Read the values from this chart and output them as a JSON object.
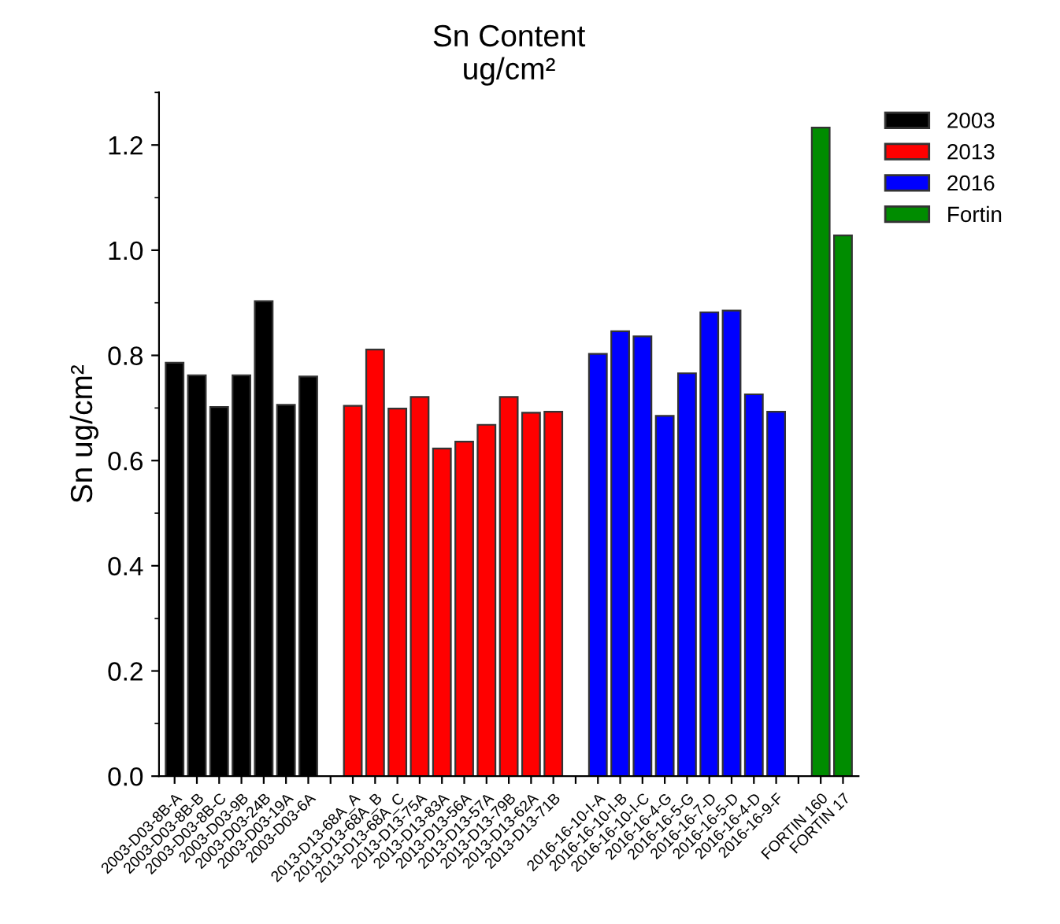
{
  "chart_data": {
    "type": "bar",
    "title": "Sn Content\nug/cm²",
    "ylabel": "Sn ug/cm²",
    "categories": [
      "2003-D03-8B-A",
      "2003-D03-8B-B",
      "2003-D03-8B-C",
      "2003-D03-9B",
      "2003-D03-24B",
      "2003-D03-19A",
      "2003-D03-6A",
      null,
      "2013-D13-68A_A",
      "2013-D13-68A_B",
      "2013-D13-68A_C",
      "2013-D13-75A",
      "2013-D13-83A",
      "2013-D13-56A",
      "2013-D13-57A",
      "2013-D13-79B",
      "2013-D13-62A",
      "2013-D13-71B",
      null,
      "2016-16-10-I-A",
      "2016-16-10-I-B",
      "2016-16-10-I-C",
      "2016-16-4-G",
      "2016-16-5-G",
      "2016-16-7-D",
      "2016-16-5-D",
      "2016-16-4-D",
      "2016-16-9-F",
      null,
      "FORTIN 160",
      "FORTIN 17"
    ],
    "series": [
      {
        "name": "2003",
        "color": "#000000",
        "values": [
          0.786,
          0.762,
          0.702,
          0.762,
          0.903,
          0.706,
          0.76,
          null,
          null,
          null,
          null,
          null,
          null,
          null,
          null,
          null,
          null,
          null,
          null,
          null,
          null,
          null,
          null,
          null,
          null,
          null,
          null,
          null,
          null,
          null,
          null
        ]
      },
      {
        "name": "2013",
        "color": "#ff0000",
        "values": [
          null,
          null,
          null,
          null,
          null,
          null,
          null,
          null,
          0.704,
          0.811,
          0.699,
          0.721,
          0.623,
          0.636,
          0.668,
          0.721,
          0.691,
          0.693,
          null,
          null,
          null,
          null,
          null,
          null,
          null,
          null,
          null,
          null,
          null,
          null,
          null
        ]
      },
      {
        "name": "2016",
        "color": "#0000ff",
        "values": [
          null,
          null,
          null,
          null,
          null,
          null,
          null,
          null,
          null,
          null,
          null,
          null,
          null,
          null,
          null,
          null,
          null,
          null,
          null,
          0.803,
          0.846,
          0.836,
          0.685,
          0.766,
          0.882,
          0.885,
          0.726,
          0.693,
          null,
          null,
          null
        ]
      },
      {
        "name": "Fortin",
        "color": "#008c00",
        "values": [
          null,
          null,
          null,
          null,
          null,
          null,
          null,
          null,
          null,
          null,
          null,
          null,
          null,
          null,
          null,
          null,
          null,
          null,
          null,
          null,
          null,
          null,
          null,
          null,
          null,
          null,
          null,
          null,
          null,
          1.233,
          1.028
        ]
      }
    ],
    "ylim": [
      0,
      1.3
    ],
    "yticks": [
      {
        "value": 0,
        "label": "0.0"
      },
      0.2,
      0.4,
      0.6,
      0.8,
      {
        "value": 1.0,
        "label": "1.0"
      },
      1.2
    ],
    "grid": false,
    "legend": "top right"
  }
}
